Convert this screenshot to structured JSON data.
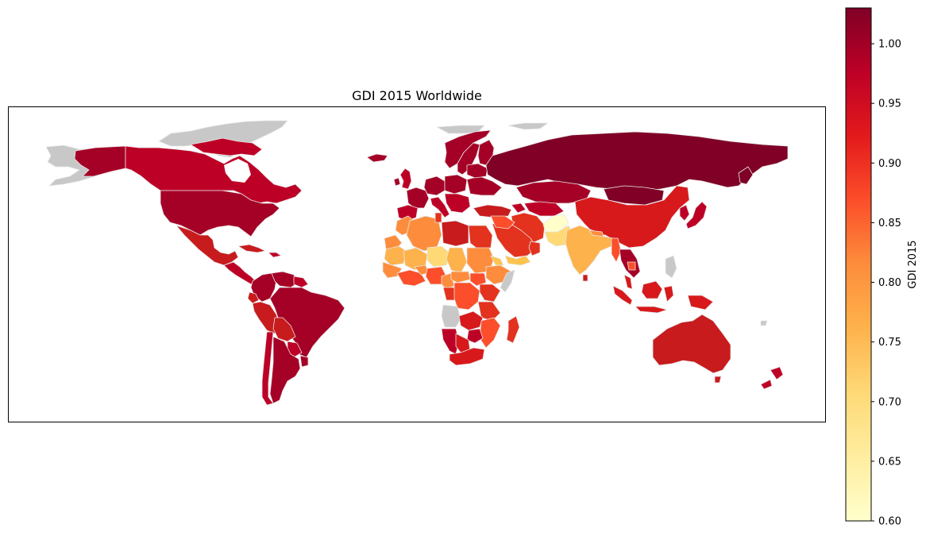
{
  "map": {
    "title": "GDI 2015 Worldwide",
    "colorbar": {
      "label": "GDI 2015",
      "min": 0.6,
      "max": 1.03,
      "ticks": [
        "0.60",
        "0.65",
        "0.70",
        "0.75",
        "0.80",
        "0.85",
        "0.90",
        "0.95",
        "1.00"
      ],
      "colormap": "YlOrRd",
      "colors": [
        "#ffffcc",
        "#ffeda0",
        "#fed976",
        "#feb24c",
        "#fd8d3c",
        "#fc4e2a",
        "#e31a1c",
        "#bd0026",
        "#800026"
      ]
    },
    "missing_color": "#c8c8c8",
    "border_color": "#e6e6e6"
  }
}
